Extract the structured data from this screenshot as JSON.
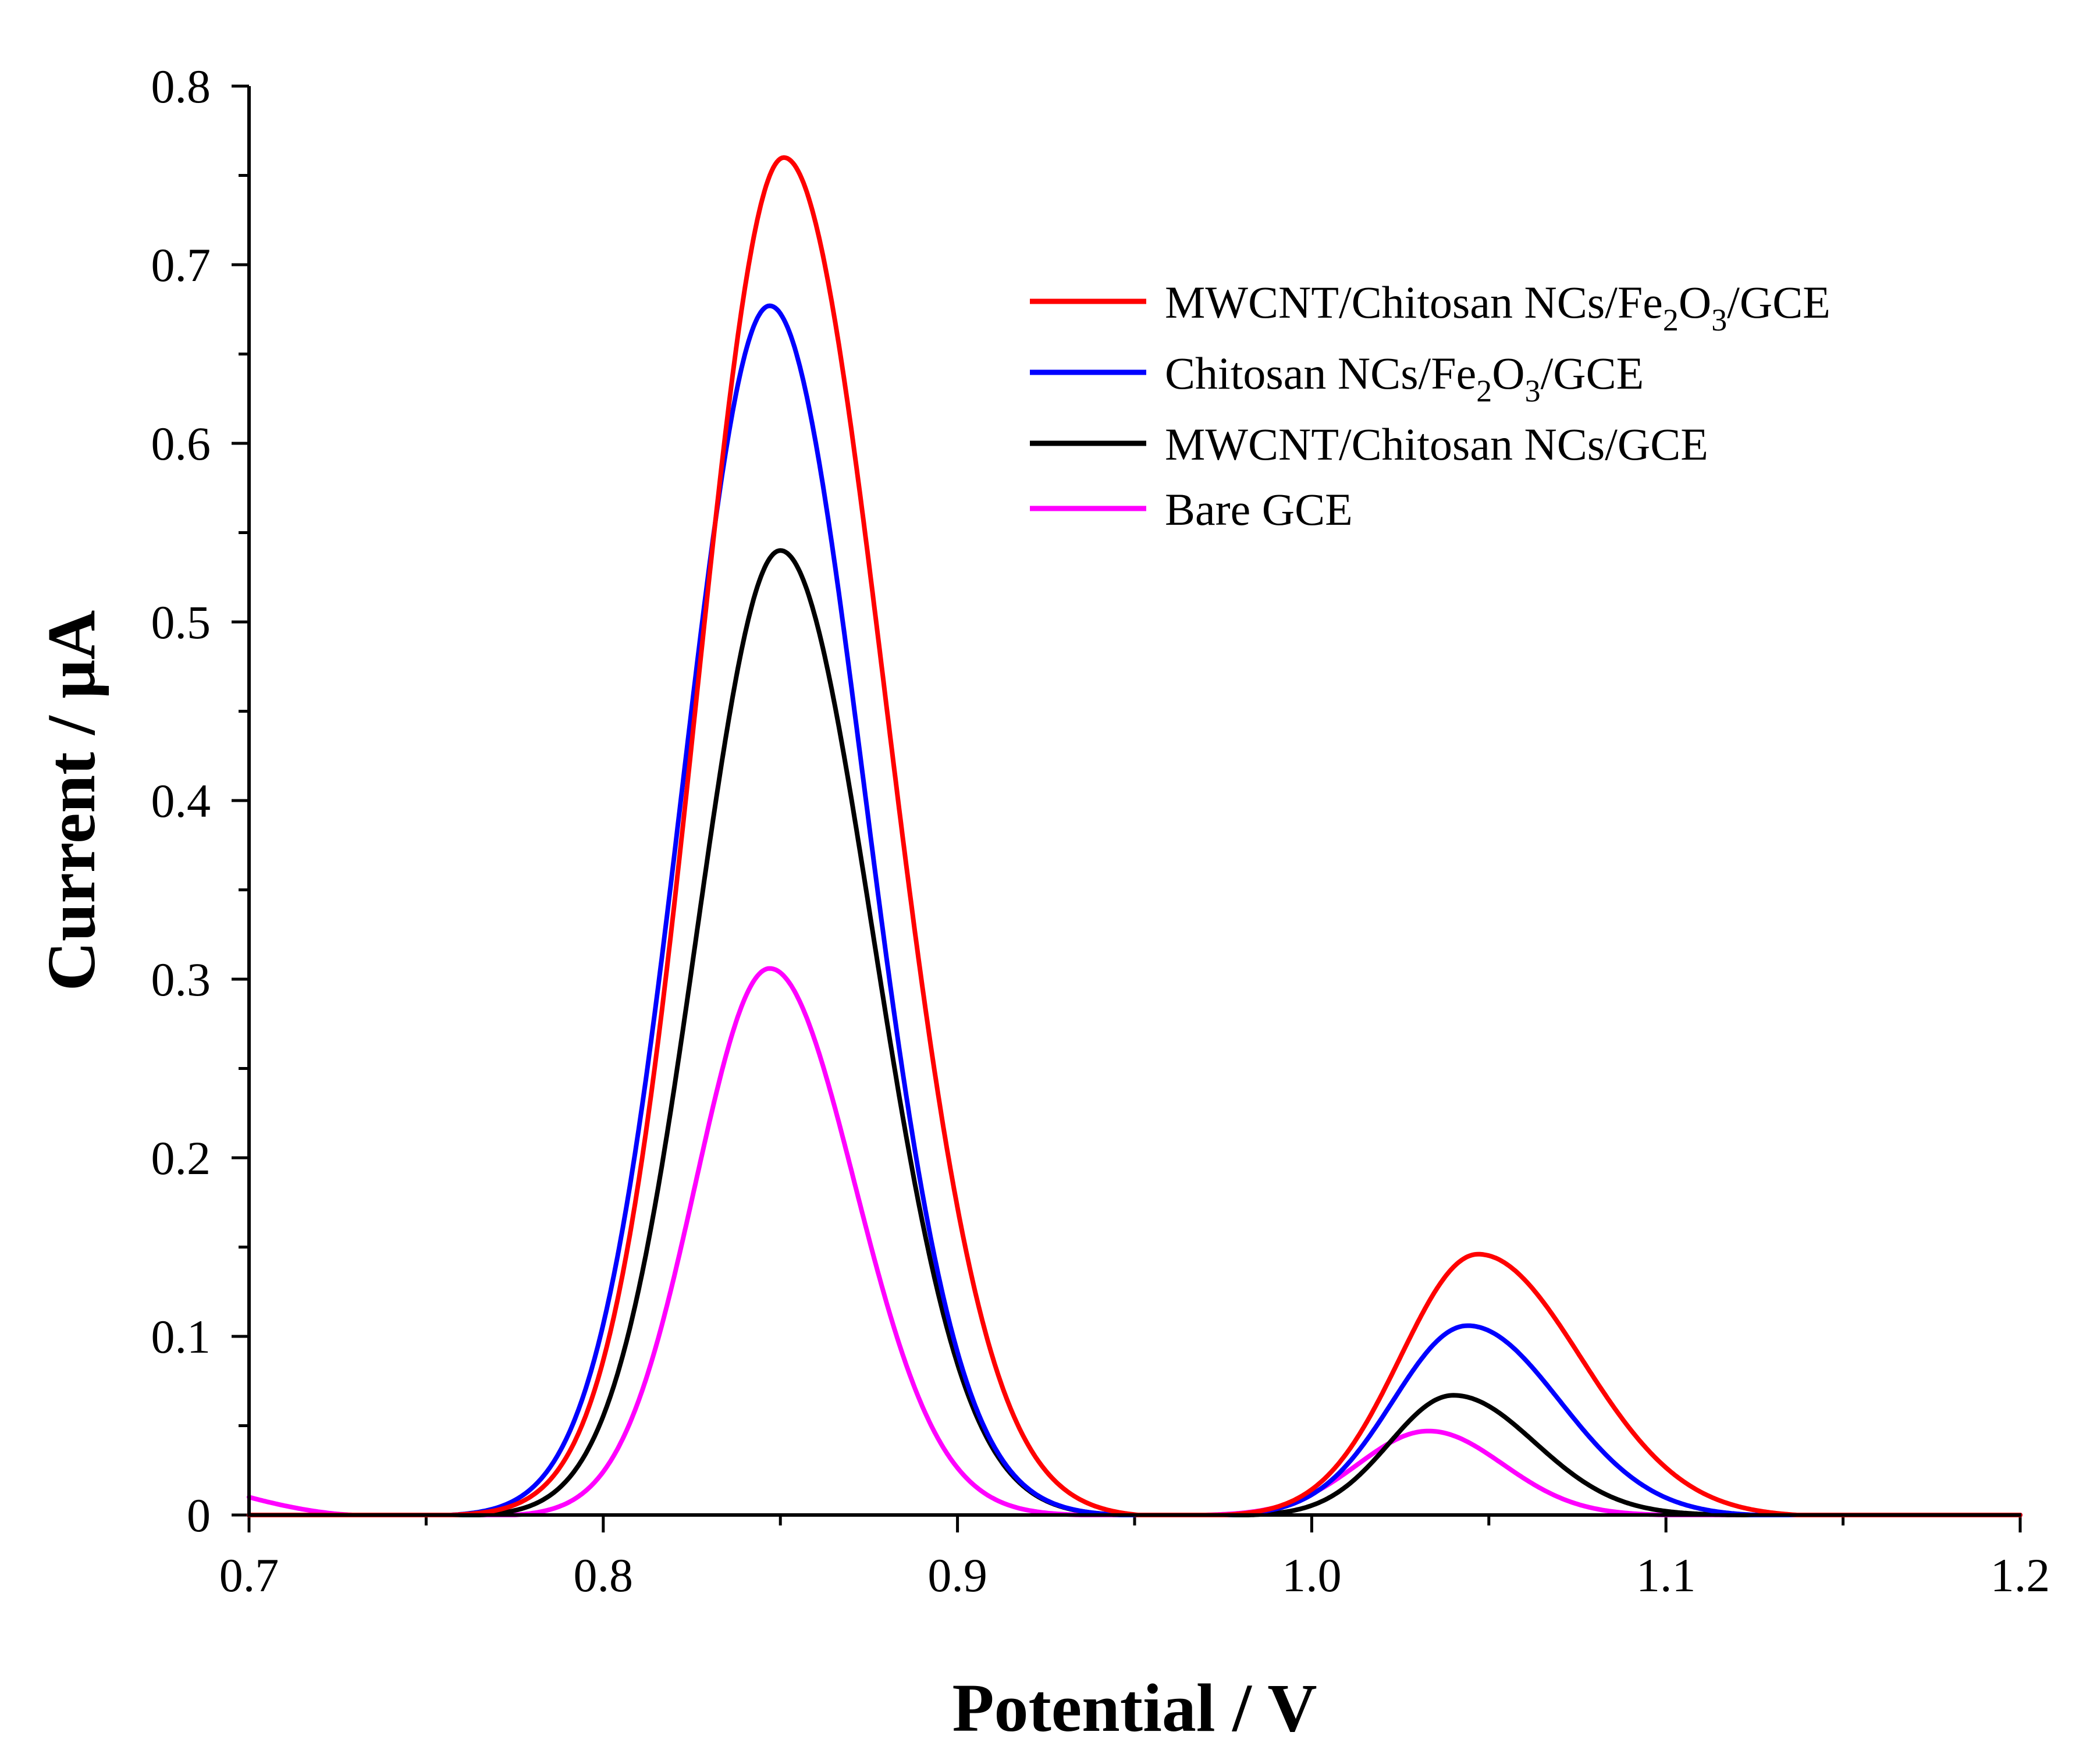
{
  "chart_data": {
    "type": "line",
    "title": "",
    "xlabel": "Potential / V",
    "ylabel": "Current / μA",
    "xlim": [
      0.7,
      1.2
    ],
    "ylim": [
      0,
      0.8
    ],
    "x_ticks": [
      "0.7",
      "0.8",
      "0.9",
      "1.0",
      "1.1",
      "1.2"
    ],
    "y_ticks": [
      "0",
      "0.1",
      "0.2",
      "0.3",
      "0.4",
      "0.5",
      "0.6",
      "0.7",
      "0.8"
    ],
    "grid": false,
    "legend_position": "top-right",
    "series": [
      {
        "name": "MWCNT/Chitosan NCs/Fe2O3/GCE",
        "legend_parts": {
          "a": "MWCNT/Chitosan NCs/Fe",
          "s1": "2",
          "b": "O",
          "s2": "3",
          "c": "/GCE"
        },
        "color": "#ff0000",
        "peaks": [
          {
            "center": 0.851,
            "height": 0.76,
            "sigma_left": 0.0245,
            "sigma_right": 0.0285,
            "start": 0.757,
            "end": 0.951
          },
          {
            "center": 1.047,
            "height": 0.146,
            "sigma_left": 0.022,
            "sigma_right": 0.029,
            "start": 0.975,
            "end": 1.137
          }
        ]
      },
      {
        "name": "Chitosan NCs/Fe2O3/GCE",
        "legend_parts": {
          "a": "Chitosan NCs/Fe",
          "s1": "2",
          "b": "O",
          "s2": "3",
          "c": "/GCE"
        },
        "color": "#0000ff",
        "peaks": [
          {
            "center": 0.847,
            "height": 0.677,
            "sigma_left": 0.0245,
            "sigma_right": 0.0265,
            "start": 0.757,
            "end": 0.947
          },
          {
            "center": 1.044,
            "height": 0.106,
            "sigma_left": 0.021,
            "sigma_right": 0.026,
            "start": 0.975,
            "end": 1.125
          }
        ]
      },
      {
        "name": "MWCNT/Chitosan NCs/GCE",
        "legend_parts": {
          "a": "MWCNT/Chitosan NCs/GCE",
          "s1": "",
          "b": "",
          "s2": "",
          "c": ""
        },
        "color": "#000000",
        "peaks": [
          {
            "center": 0.85,
            "height": 0.54,
            "sigma_left": 0.0235,
            "sigma_right": 0.026,
            "start": 0.765,
            "end": 0.947
          },
          {
            "center": 1.04,
            "height": 0.067,
            "sigma_left": 0.018,
            "sigma_right": 0.023,
            "start": 0.982,
            "end": 1.122
          }
        ]
      },
      {
        "name": "Bare GCE",
        "legend_parts": {
          "a": "Bare GCE",
          "s1": "",
          "b": "",
          "s2": "",
          "c": ""
        },
        "color": "#ff00ff",
        "tail": {
          "x0": 0.7,
          "y0": 0.01,
          "x1": 0.73
        },
        "peaks": [
          {
            "center": 0.847,
            "height": 0.306,
            "sigma_left": 0.021,
            "sigma_right": 0.024,
            "start": 0.775,
            "end": 0.935
          },
          {
            "center": 1.033,
            "height": 0.047,
            "sigma_left": 0.02,
            "sigma_right": 0.021,
            "start": 0.97,
            "end": 1.1
          }
        ]
      }
    ]
  }
}
